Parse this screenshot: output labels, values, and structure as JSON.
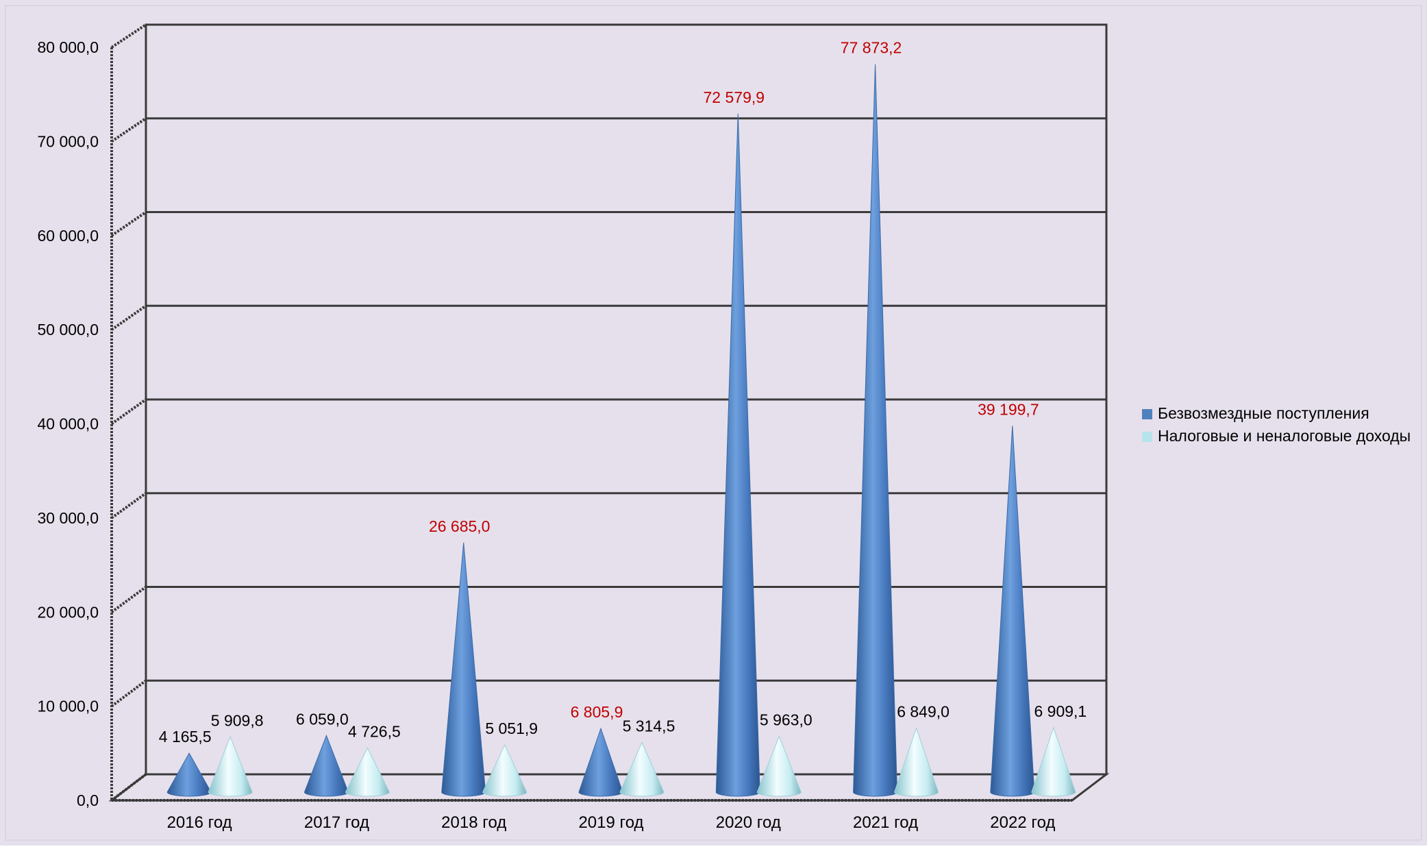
{
  "chart_data": {
    "type": "bar",
    "style": "3d-cone",
    "title": "",
    "xlabel": "",
    "ylabel": "",
    "categories": [
      "2016 год",
      "2017 год",
      "2018 год",
      "2019 год",
      "2020 год",
      "2021 год",
      "2022 год"
    ],
    "series": [
      {
        "name": "Безвозмездные поступления",
        "color": "#4f81bd",
        "values": [
          4165.5,
          6059.0,
          26685.0,
          6805.9,
          72579.9,
          77873.2,
          39199.7
        ],
        "labels": [
          "4 165,5",
          "6 059,0",
          "26 685,0",
          "6 805,9",
          "72 579,9",
          "77 873,2",
          "39 199,7"
        ],
        "label_colors": [
          "#000000",
          "#000000",
          "#c00000",
          "#c00000",
          "#c00000",
          "#c00000",
          "#c00000"
        ]
      },
      {
        "name": "Налоговые и неналоговые доходы",
        "color": "#b7e4ec",
        "values": [
          5909.8,
          4726.5,
          5051.9,
          5314.5,
          5963.0,
          6849.0,
          6909.1
        ],
        "labels": [
          "5 909,8",
          "4 726,5",
          "5 051,9",
          "5 314,5",
          "5 963,0",
          "6 849,0",
          "6 909,1"
        ],
        "label_colors": [
          "#000000",
          "#000000",
          "#000000",
          "#000000",
          "#000000",
          "#000000",
          "#000000"
        ]
      }
    ],
    "y_ticks": [
      "0,0",
      "10 000,0",
      "20 000,0",
      "30 000,0",
      "40 000,0",
      "50 000,0",
      "60 000,0",
      "70 000,0",
      "80 000,0"
    ],
    "ylim": [
      0,
      80000
    ],
    "grid": true,
    "legend_position": "right",
    "colors": {
      "background": "#e6e0ec",
      "grid": "#3a3a3a"
    }
  }
}
